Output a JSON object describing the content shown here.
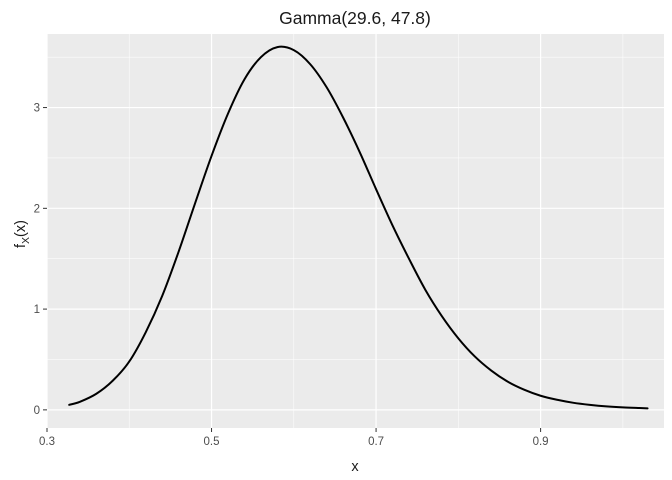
{
  "chart_data": {
    "type": "line",
    "title": "Gamma(29.6, 47.8)",
    "xlabel": "x",
    "ylabel": {
      "main": "f",
      "sub": "X",
      "rest": "(x)"
    },
    "xlim": [
      0.3,
      1.05
    ],
    "ylim": [
      -0.18,
      3.73
    ],
    "x_major_ticks": [
      0.3,
      0.5,
      0.7,
      0.9
    ],
    "x_tick_labels": [
      "0.3",
      "0.5",
      "0.7",
      "0.9"
    ],
    "x_minor_ticks": [
      0.4,
      0.6,
      0.8,
      1.0
    ],
    "y_major_ticks": [
      0,
      1,
      2,
      3
    ],
    "y_tick_labels": [
      "0",
      "1",
      "2",
      "3"
    ],
    "y_minor_ticks": [
      0.5,
      1.5,
      2.5,
      3.5
    ],
    "grid": true,
    "legend": "none",
    "series": [
      {
        "x": [
          0.327,
          0.34,
          0.36,
          0.38,
          0.4,
          0.42,
          0.44,
          0.46,
          0.48,
          0.5,
          0.52,
          0.54,
          0.56,
          0.58,
          0.6,
          0.62,
          0.64,
          0.66,
          0.68,
          0.7,
          0.72,
          0.74,
          0.76,
          0.78,
          0.8,
          0.82,
          0.84,
          0.86,
          0.88,
          0.9,
          0.92,
          0.94,
          0.96,
          0.98,
          1.0,
          1.02,
          1.03
        ],
        "y": [
          0.05,
          0.08,
          0.16,
          0.29,
          0.48,
          0.77,
          1.13,
          1.57,
          2.05,
          2.52,
          2.94,
          3.28,
          3.5,
          3.6,
          3.57,
          3.43,
          3.2,
          2.9,
          2.56,
          2.19,
          1.83,
          1.5,
          1.19,
          0.93,
          0.71,
          0.53,
          0.39,
          0.28,
          0.2,
          0.14,
          0.1,
          0.07,
          0.05,
          0.035,
          0.025,
          0.018,
          0.015
        ]
      }
    ],
    "colors": {
      "panel": "#ebebeb",
      "grid_major": "#ffffff",
      "line": "#000000",
      "tick_text": "#4d4d4d",
      "title_text": "#1a1a1a"
    }
  }
}
